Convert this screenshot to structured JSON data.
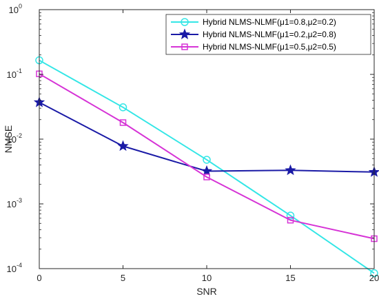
{
  "chart_data": {
    "type": "line",
    "xlabel": "SNR",
    "ylabel": "NMSE",
    "xlim": [
      0,
      20
    ],
    "ylim": [
      0.0001,
      1
    ],
    "yscale": "log",
    "grid": false,
    "legend_position": "top-right",
    "x": [
      0,
      5,
      10,
      15,
      20
    ],
    "x_ticks": [
      "0",
      "5",
      "10",
      "15",
      "20"
    ],
    "y_ticks": [
      {
        "base": "10",
        "exp": "0"
      },
      {
        "base": "10",
        "exp": "-1"
      },
      {
        "base": "10",
        "exp": "-2"
      },
      {
        "base": "10",
        "exp": "-3"
      },
      {
        "base": "10",
        "exp": "-4"
      }
    ],
    "series": [
      {
        "name": "Hybrid NLMS-NLMF(μ1=0.8,μ2=0.2)",
        "color": "#33e6e6",
        "marker": "circle",
        "values": [
          0.165,
          0.031,
          0.0048,
          0.00066,
          8.5e-05
        ]
      },
      {
        "name": "Hybrid NLMS-NLMF(μ1=0.2,μ2=0.8)",
        "color": "#1a1aa6",
        "marker": "star",
        "values": [
          0.037,
          0.0078,
          0.0032,
          0.0033,
          0.0031
        ]
      },
      {
        "name": "Hybrid NLMS-NLMF(μ1=0.5,μ2=0.5)",
        "color": "#d633d6",
        "marker": "square",
        "values": [
          0.102,
          0.018,
          0.0026,
          0.00056,
          0.00029
        ]
      }
    ]
  }
}
